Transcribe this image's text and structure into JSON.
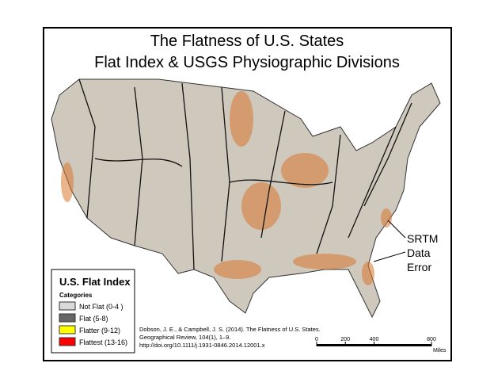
{
  "title": [
    "The Flatness of U.S. States",
    "Flat Index & USGS Physiographic Divisions"
  ],
  "legend": {
    "title": "U.S. Flat Index",
    "subtitle": "Categories",
    "items": [
      {
        "label": "Not Flat (0-4 )",
        "color": "#d9d9d9"
      },
      {
        "label": "Flat (5-8)",
        "color": "#666666"
      },
      {
        "label": "Flatter (9-12)",
        "color": "#ffff00"
      },
      {
        "label": "Flattest (13-16)",
        "color": "#ff0000"
      }
    ]
  },
  "citation": [
    "Dobson, J. E., & Campbell, J. S. (2014). The Flatness of U.S. States.",
    "Geographical Review, 104(1), 1–9.",
    "http://doi.org/10.1111/j.1931-0846.2014.12001.x"
  ],
  "annotation": [
    "SRTM",
    "Data",
    "Error"
  ],
  "scale": {
    "ticks": [
      0,
      200,
      400,
      800
    ],
    "unit": "Miles"
  }
}
